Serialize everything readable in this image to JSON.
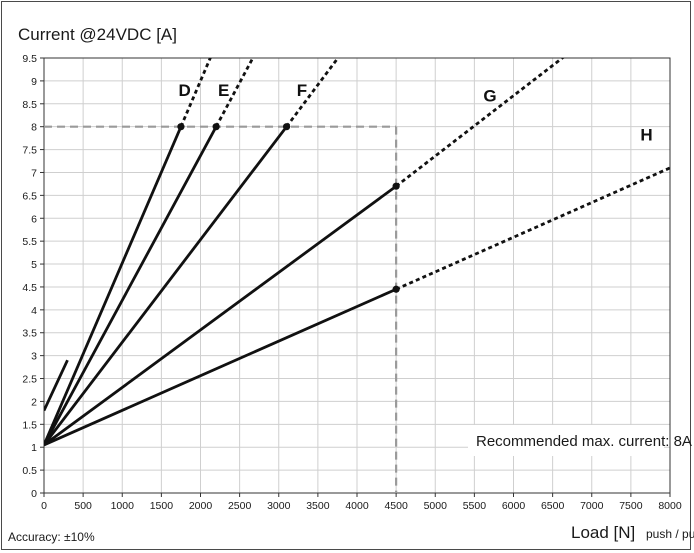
{
  "chart_data": {
    "type": "line",
    "ylabel": "Current @24VDC [A]",
    "xlabel_main": "Load [N]",
    "xlabel_sub": "push / pull",
    "footnote": "Accuracy: ±10%",
    "annotation": "Recommended max. current: 8A",
    "xlim": [
      0,
      8000
    ],
    "ylim": [
      0,
      9.5
    ],
    "x_ticks": [
      "0",
      "500",
      "1000",
      "1500",
      "2000",
      "2500",
      "3000",
      "3500",
      "4000",
      "4500",
      "5000",
      "5500",
      "6000",
      "6500",
      "7000",
      "7500",
      "8000"
    ],
    "y_ticks": [
      "0",
      "0.5",
      "1",
      "1.5",
      "2",
      "2.5",
      "3",
      "3.5",
      "4",
      "4.5",
      "5",
      "5.5",
      "6",
      "6.5",
      "7",
      "7.5",
      "8",
      "8.5",
      "9",
      "9.5"
    ],
    "grid": true,
    "limit_box": {
      "x": 4500,
      "y": 8
    },
    "series": [
      {
        "name": "D",
        "solid": [
          [
            0,
            1.05
          ],
          [
            1750,
            8.0
          ]
        ],
        "dotted": [
          [
            1750,
            8.0
          ],
          [
            2150,
            9.6
          ]
        ]
      },
      {
        "name": "E",
        "solid": [
          [
            0,
            1.05
          ],
          [
            2200,
            8.0
          ]
        ],
        "dotted": [
          [
            2200,
            8.0
          ],
          [
            2700,
            9.6
          ]
        ]
      },
      {
        "name": "F",
        "solid": [
          [
            0,
            1.05
          ],
          [
            3100,
            8.0
          ]
        ],
        "dotted": [
          [
            3100,
            8.0
          ],
          [
            3800,
            9.6
          ]
        ]
      },
      {
        "name": "G",
        "solid": [
          [
            0,
            1.05
          ],
          [
            4500,
            6.7
          ]
        ],
        "dotted": [
          [
            4500,
            6.7
          ],
          [
            6700,
            9.6
          ]
        ]
      },
      {
        "name": "H",
        "solid": [
          [
            0,
            1.05
          ],
          [
            4500,
            4.45
          ]
        ],
        "dotted": [
          [
            4500,
            4.45
          ],
          [
            8000,
            7.1
          ]
        ]
      },
      {
        "name": "",
        "solid": [
          [
            0,
            1.8
          ],
          [
            300,
            2.9
          ]
        ],
        "dotted": []
      }
    ],
    "colors": {
      "line": "#111111",
      "grid": "#cfcfcf",
      "limit": "#9a9a9a"
    }
  }
}
